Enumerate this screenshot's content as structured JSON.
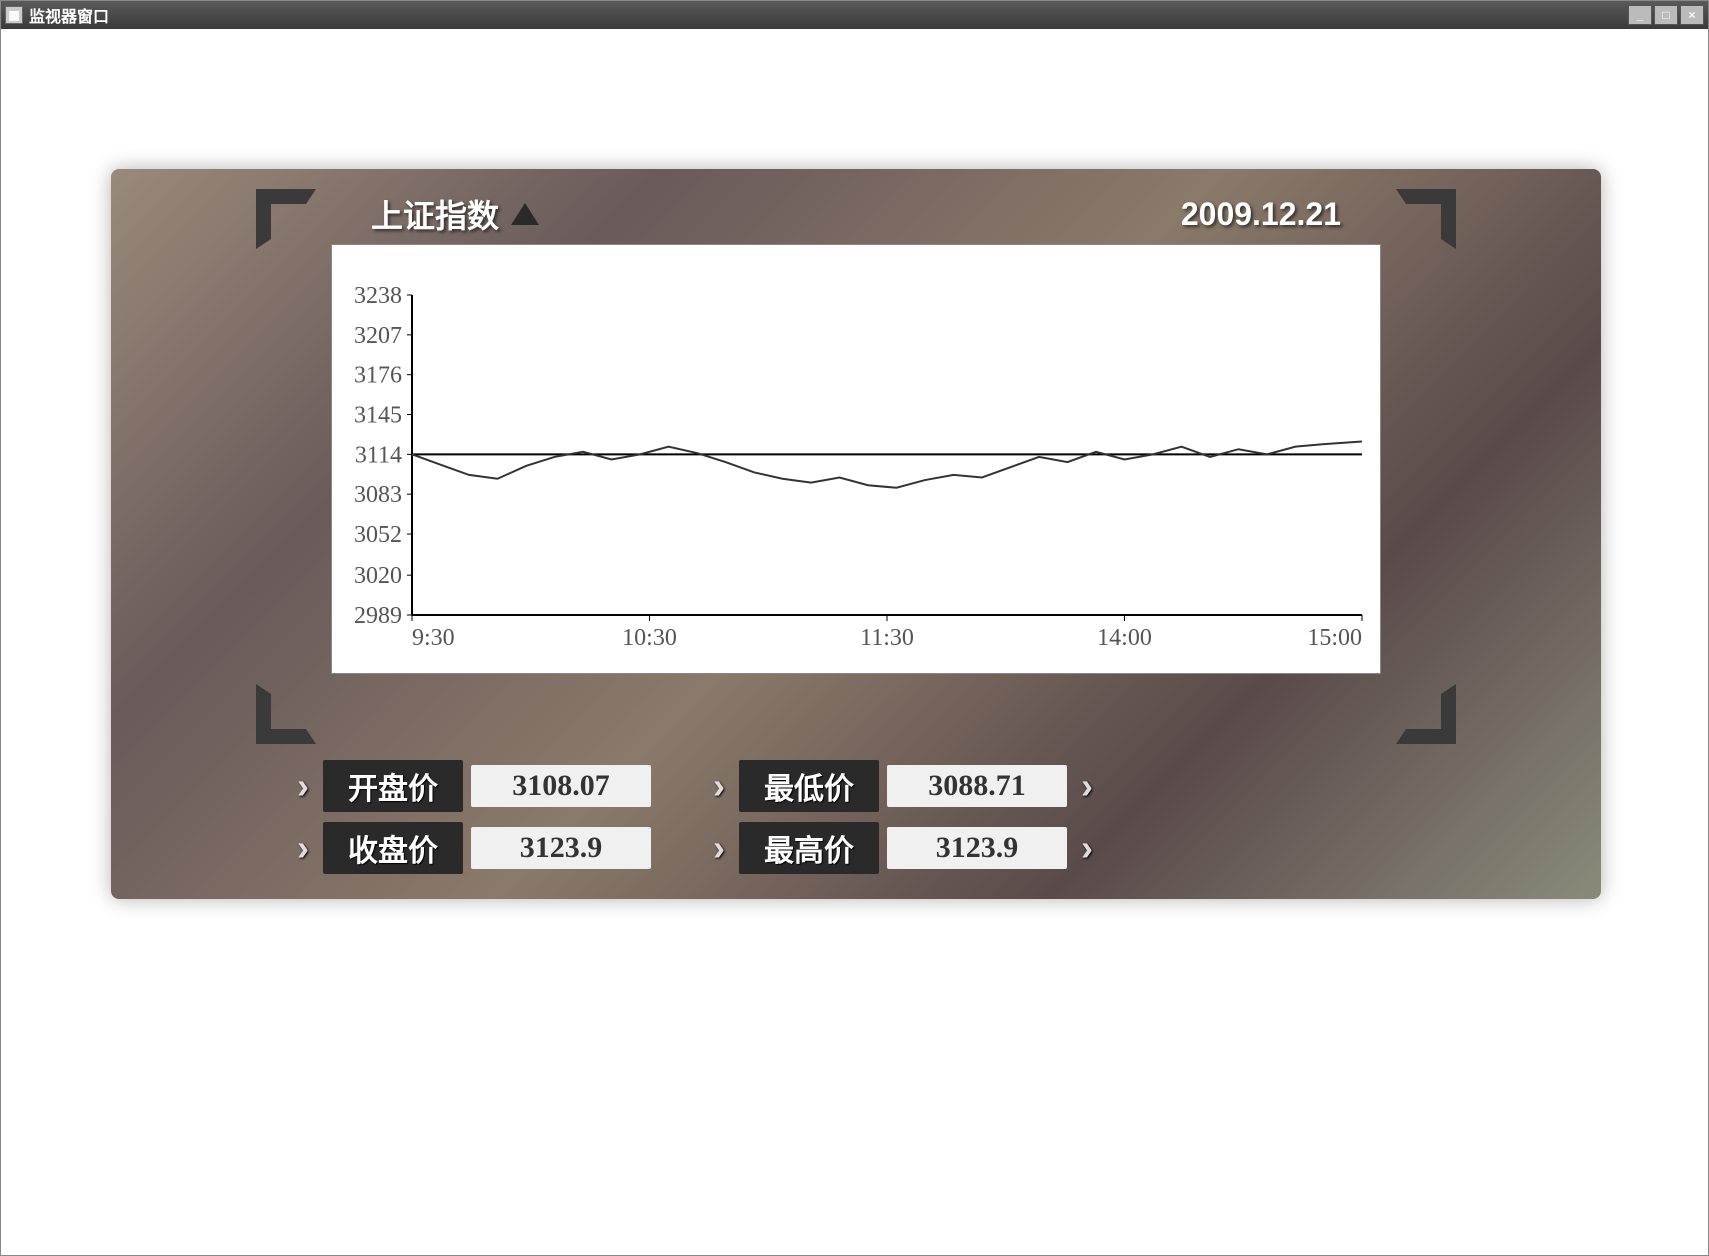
{
  "window": {
    "title": "监视器窗口"
  },
  "header": {
    "index_name": "上证指数",
    "direction": "up",
    "date": "2009.12.21"
  },
  "chart": {
    "type": "line",
    "background_color": "#ffffff",
    "axis_color": "#000000",
    "line_color": "#333333",
    "baseline_color": "#000000",
    "baseline_value": 3114,
    "ylim": [
      2989,
      3238
    ],
    "yticks": [
      2989,
      3020,
      3052,
      3083,
      3114,
      3145,
      3176,
      3207,
      3238
    ],
    "xticks": [
      "9:30",
      "10:30",
      "11:30",
      "14:00",
      "15:00"
    ],
    "tick_fontsize": 24,
    "tick_color": "#555555",
    "series": [
      {
        "x": 0.0,
        "y": 3114
      },
      {
        "x": 0.03,
        "y": 3106
      },
      {
        "x": 0.06,
        "y": 3098
      },
      {
        "x": 0.09,
        "y": 3095
      },
      {
        "x": 0.12,
        "y": 3105
      },
      {
        "x": 0.15,
        "y": 3112
      },
      {
        "x": 0.18,
        "y": 3116
      },
      {
        "x": 0.21,
        "y": 3110
      },
      {
        "x": 0.24,
        "y": 3114
      },
      {
        "x": 0.27,
        "y": 3120
      },
      {
        "x": 0.3,
        "y": 3115
      },
      {
        "x": 0.33,
        "y": 3108
      },
      {
        "x": 0.36,
        "y": 3100
      },
      {
        "x": 0.39,
        "y": 3095
      },
      {
        "x": 0.42,
        "y": 3092
      },
      {
        "x": 0.45,
        "y": 3096
      },
      {
        "x": 0.48,
        "y": 3090
      },
      {
        "x": 0.51,
        "y": 3088
      },
      {
        "x": 0.54,
        "y": 3094
      },
      {
        "x": 0.57,
        "y": 3098
      },
      {
        "x": 0.6,
        "y": 3096
      },
      {
        "x": 0.63,
        "y": 3104
      },
      {
        "x": 0.66,
        "y": 3112
      },
      {
        "x": 0.69,
        "y": 3108
      },
      {
        "x": 0.72,
        "y": 3116
      },
      {
        "x": 0.75,
        "y": 3110
      },
      {
        "x": 0.78,
        "y": 3114
      },
      {
        "x": 0.81,
        "y": 3120
      },
      {
        "x": 0.84,
        "y": 3112
      },
      {
        "x": 0.87,
        "y": 3118
      },
      {
        "x": 0.9,
        "y": 3114
      },
      {
        "x": 0.93,
        "y": 3120
      },
      {
        "x": 0.96,
        "y": 3122
      },
      {
        "x": 1.0,
        "y": 3124
      }
    ]
  },
  "stats": {
    "open_label": "开盘价",
    "open_value": "3108.07",
    "low_label": "最低价",
    "low_value": "3088.71",
    "close_label": "收盘价",
    "close_value": "3123.9",
    "high_label": "最高价",
    "high_value": "3123.9"
  },
  "colors": {
    "panel_bg_start": "#9a8a7a",
    "panel_bg_end": "#5a4a4a",
    "stat_label_bg": "#2a2a2a",
    "stat_value_bg": "#f0f0f0",
    "titlebar_text": "#ffffff"
  }
}
